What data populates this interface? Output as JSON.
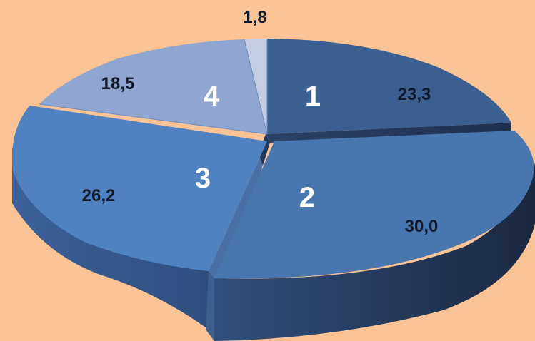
{
  "chart_data": {
    "type": "pie",
    "style": "3d-exploded",
    "categories": [
      "1",
      "2",
      "3",
      "4",
      ""
    ],
    "values": [
      23.3,
      30.0,
      26.2,
      18.5,
      1.8
    ],
    "value_labels": [
      "23,3",
      "30,0",
      "26,2",
      "18,5",
      "1,8"
    ],
    "title": "",
    "legend": "none",
    "colors": [
      "#3b5f8f",
      "#4a76b0",
      "#5081c0",
      "#8fa6d0",
      "#c3cde3"
    ],
    "background": "#fac396"
  }
}
